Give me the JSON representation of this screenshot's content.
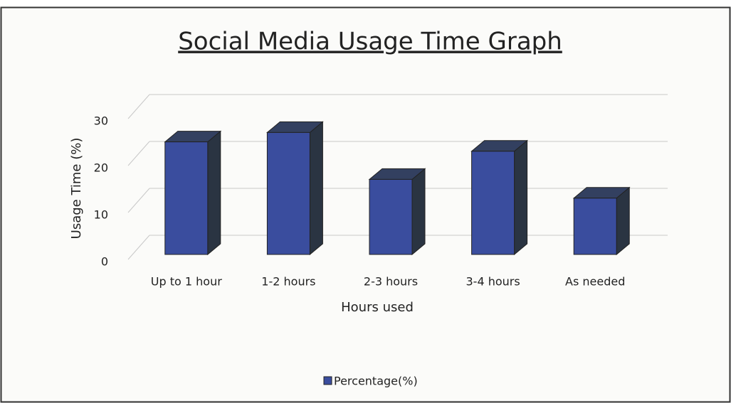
{
  "chart_data": {
    "type": "bar3d",
    "title": "Social  Media Usage Time Graph",
    "x_label": "Hours used",
    "y_label": "Usage Time (%)",
    "categories": [
      "Up to 1 hour",
      "1-2 hours",
      "2-3 hours",
      "3-4 hours",
      "As needed"
    ],
    "series": [
      {
        "name": "Percentage(%)",
        "color": "#3a4d9e",
        "values": [
          24,
          26,
          16,
          22,
          12
        ]
      }
    ],
    "ylim": [
      0,
      30
    ],
    "yticks": [
      0,
      10,
      20,
      30
    ],
    "grid": true,
    "legend": "bottom"
  }
}
